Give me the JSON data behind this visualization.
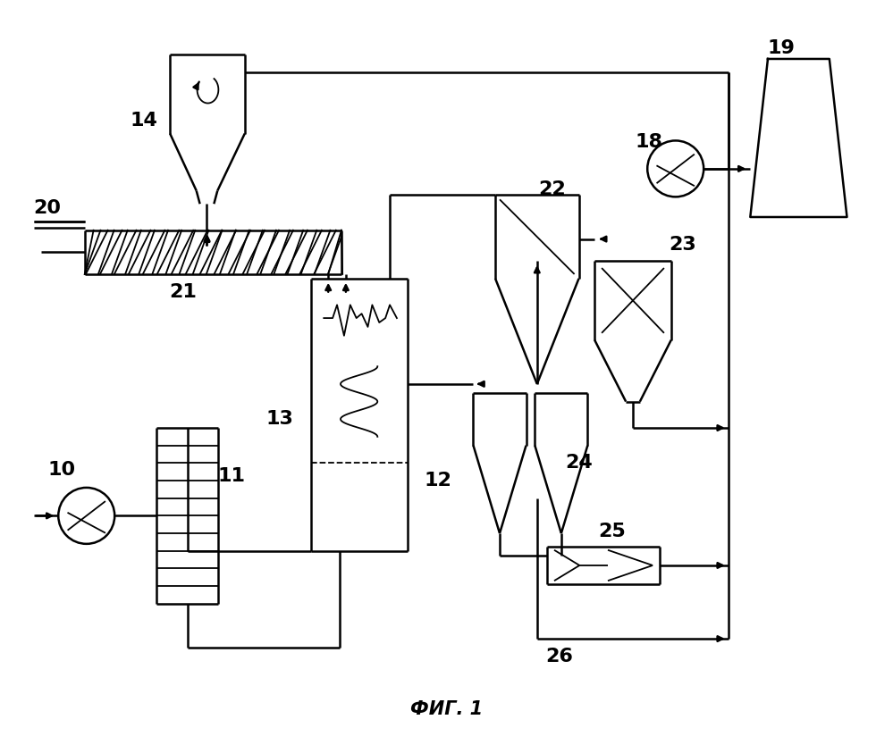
{
  "title": "ФИГ. 1",
  "bg_color": "#ffffff",
  "line_color": "#000000",
  "lw": 1.8
}
